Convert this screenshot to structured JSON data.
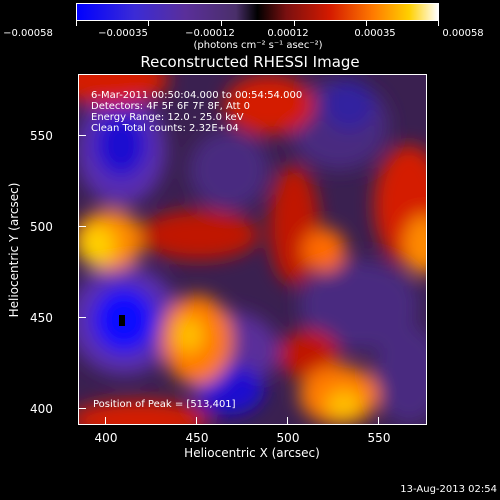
{
  "colorbar": {
    "ticks": [
      "−0.00058",
      "−0.00035",
      "−0.00012",
      "0.00012",
      "0.00035",
      "0.00058"
    ],
    "units": "(photons cm⁻² s⁻¹ asec⁻²)",
    "colors": [
      "#0000ff",
      "#5a2f9a",
      "#000000",
      "#d41a00",
      "#ff7a00",
      "#ffffff"
    ]
  },
  "title": "Reconstructed RHESSI Image",
  "info": {
    "time_range": "6-Mar-2011 00:50:04.000 to 00:54:54.000",
    "detectors": "Detectors: 4F 5F 6F 7F 8F, Att 0",
    "energy": "Energy Range: 12.0 - 25.0 keV",
    "clean": "Clean     Total counts: 2.32E+04",
    "peak": "Position of Peak = [513,401]"
  },
  "axes": {
    "x_ticks": [
      "400",
      "450",
      "500",
      "550"
    ],
    "y_ticks": [
      "550",
      "500",
      "450",
      "400"
    ],
    "xlabel": "Heliocentric X (arcsec)",
    "ylabel": "Heliocentric Y (arcsec)"
  },
  "chart_data": {
    "type": "heatmap",
    "xlim": [
      382,
      574
    ],
    "ylim": [
      393,
      585
    ],
    "color_range": [
      -0.00058,
      0.00058
    ],
    "peak": [
      513,
      401
    ]
  },
  "footer": "13-Aug-2013 02:54"
}
